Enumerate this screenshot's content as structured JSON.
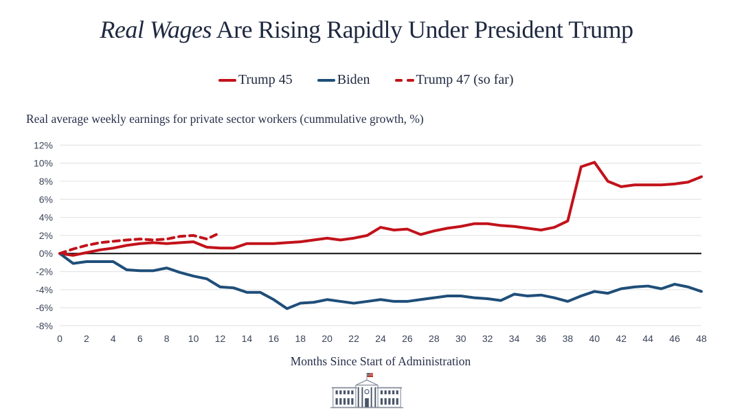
{
  "title": {
    "italic_part": "Real Wages",
    "rest_part": " Are Rising Rapidly Under President Trump"
  },
  "subtitle": "Real average weekly earnings for private sector workers (cummulative growth, %)",
  "legend": {
    "items": [
      {
        "label": "Trump 45",
        "style": "solid",
        "color": "#C2121A"
      },
      {
        "label": "Biden",
        "style": "solid",
        "color": "#1F4E79"
      },
      {
        "label": "Trump 47 (so far)",
        "style": "dashed",
        "color": "#C2121A"
      }
    ]
  },
  "colors": {
    "trump_red": "#C2121A",
    "biden_blue": "#1F4E79",
    "title_navy": "#1F2940",
    "tick_slate": "#3A4358",
    "gridline": "#E5E5E7",
    "zero_line": "#1A1A1A"
  },
  "footer": {
    "logo_icon": "white-house-icon"
  },
  "chart_data": {
    "type": "line",
    "title": "Real Wages Are Rising Rapidly Under President Trump",
    "subtitle": "Real average weekly earnings for private sector workers (cummulative growth, %)",
    "xlabel": "Months Since Start of Administration",
    "ylabel": "",
    "xlim": [
      0,
      48
    ],
    "ylim": [
      -8,
      12
    ],
    "grid": true,
    "legend_position": "top",
    "x_ticks": [
      0,
      2,
      4,
      6,
      8,
      10,
      12,
      14,
      16,
      18,
      20,
      22,
      24,
      26,
      28,
      30,
      32,
      34,
      36,
      38,
      40,
      42,
      44,
      46,
      48
    ],
    "y_tick_values": [
      12,
      10,
      8,
      6,
      4,
      2,
      0,
      -2,
      -4,
      -6,
      -8
    ],
    "y_tick_labels": [
      "12%",
      "10%",
      "8%",
      "6%",
      "4%",
      "2%",
      "0%",
      "-2%",
      "-4%",
      "-6%",
      "-8%"
    ],
    "x_unit": "months since start of administration",
    "series": [
      {
        "name": "Trump 45",
        "color": "#C2121A",
        "dash": false,
        "x_start": 0,
        "values": [
          0,
          -0.2,
          0.1,
          0.4,
          0.6,
          0.9,
          1.1,
          1.2,
          1.1,
          1.2,
          1.3,
          0.7,
          0.6,
          0.6,
          1.1,
          1.1,
          1.1,
          1.2,
          1.3,
          1.5,
          1.7,
          1.5,
          1.7,
          2.0,
          2.9,
          2.6,
          2.7,
          2.1,
          2.5,
          2.8,
          3.0,
          3.3,
          3.3,
          3.1,
          3.0,
          2.8,
          2.6,
          2.9,
          3.6,
          9.6,
          10.1,
          8.0,
          7.4,
          7.6,
          7.6,
          7.6,
          7.7,
          7.9,
          8.5
        ]
      },
      {
        "name": "Biden",
        "color": "#1F4E79",
        "dash": false,
        "x_start": 0,
        "values": [
          0,
          -1.1,
          -0.9,
          -0.9,
          -0.9,
          -1.8,
          -1.9,
          -1.9,
          -1.6,
          -2.1,
          -2.5,
          -2.8,
          -3.7,
          -3.8,
          -4.3,
          -4.3,
          -5.1,
          -6.1,
          -5.5,
          -5.4,
          -5.1,
          -5.3,
          -5.5,
          -5.3,
          -5.1,
          -5.3,
          -5.3,
          -5.1,
          -4.9,
          -4.7,
          -4.7,
          -4.9,
          -5.0,
          -5.2,
          -4.5,
          -4.7,
          -4.6,
          -4.9,
          -5.3,
          -4.7,
          -4.2,
          -4.4,
          -3.9,
          -3.7,
          -3.6,
          -3.9,
          -3.4,
          -3.7,
          -4.2
        ]
      },
      {
        "name": "Trump 47 (so far)",
        "color": "#C2121A",
        "dash": true,
        "x_start": 0,
        "values": [
          0,
          0.5,
          0.9,
          1.2,
          1.35,
          1.5,
          1.6,
          1.5,
          1.6,
          1.9,
          2.0,
          1.6,
          2.3
        ]
      }
    ]
  }
}
